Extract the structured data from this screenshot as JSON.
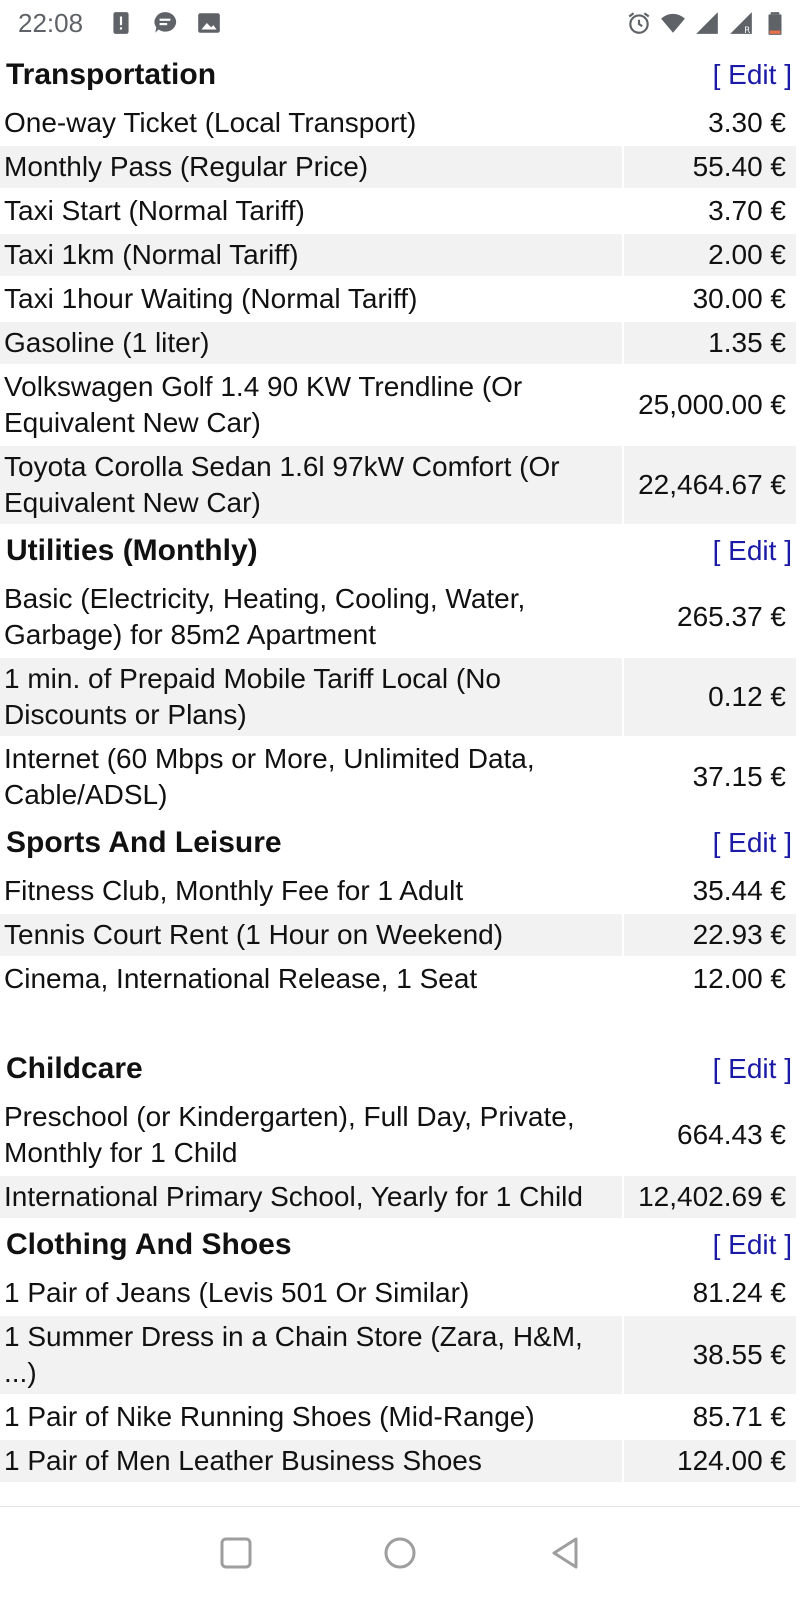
{
  "status_bar": {
    "time": "22:08",
    "icons_left": [
      "alert-icon",
      "message-icon",
      "image-icon"
    ],
    "icons_right": [
      "alarm-icon",
      "wifi-icon",
      "signal-icon",
      "signal-roaming-icon",
      "battery-low-icon"
    ]
  },
  "sections": [
    {
      "title": "Transportation",
      "edit": "[ Edit ]",
      "rows": [
        {
          "label": "One-way Ticket (Local Transport)",
          "price": "3.30 €"
        },
        {
          "label": "Monthly Pass (Regular Price)",
          "price": "55.40 €"
        },
        {
          "label": "Taxi Start (Normal Tariff)",
          "price": "3.70 €"
        },
        {
          "label": "Taxi 1km (Normal Tariff)",
          "price": "2.00 €"
        },
        {
          "label": "Taxi 1hour Waiting (Normal Tariff)",
          "price": "30.00 €"
        },
        {
          "label": "Gasoline (1 liter)",
          "price": "1.35 €"
        },
        {
          "label": "Volkswagen Golf 1.4 90 KW Trendline (Or Equivalent New Car)",
          "price": "25,000.00 €"
        },
        {
          "label": "Toyota Corolla Sedan 1.6l 97kW Comfort (Or Equivalent New Car)",
          "price": "22,464.67 €"
        }
      ]
    },
    {
      "title": "Utilities (Monthly)",
      "edit": "[ Edit ]",
      "rows": [
        {
          "label": "Basic (Electricity, Heating, Cooling, Water, Garbage) for 85m2 Apartment",
          "price": "265.37 €"
        },
        {
          "label": "1 min. of Prepaid Mobile Tariff Local (No Discounts or Plans)",
          "price": "0.12 €"
        },
        {
          "label": "Internet (60 Mbps or More, Unlimited Data, Cable/ADSL)",
          "price": "37.15 €"
        }
      ]
    },
    {
      "title": "Sports And Leisure",
      "edit": "[ Edit ]",
      "rows": [
        {
          "label": "Fitness Club, Monthly Fee for 1 Adult",
          "price": "35.44 €"
        },
        {
          "label": "Tennis Court Rent (1 Hour on Weekend)",
          "price": "22.93 €"
        },
        {
          "label": "Cinema, International Release, 1 Seat",
          "price": "12.00 €"
        }
      ]
    },
    {
      "title": "Childcare",
      "edit": "[ Edit ]",
      "rows": [
        {
          "label": "Preschool (or Kindergarten), Full Day, Private, Monthly for 1 Child",
          "price": "664.43 €"
        },
        {
          "label": "International Primary School, Yearly for 1 Child",
          "price": "12,402.69 €"
        }
      ]
    },
    {
      "title": "Clothing And Shoes",
      "edit": "[ Edit ]",
      "rows": [
        {
          "label": "1 Pair of Jeans (Levis 501 Or Similar)",
          "price": "81.24 €"
        },
        {
          "label": "1 Summer Dress in a Chain Store (Zara, H&M, ...)",
          "price": "38.55 €"
        },
        {
          "label": "1 Pair of Nike Running Shoes (Mid-Range)",
          "price": "85.71 €"
        },
        {
          "label": "1 Pair of Men Leather Business Shoes",
          "price": "124.00 €"
        }
      ]
    }
  ],
  "nav_bar": {
    "buttons": [
      "recent-apps-icon",
      "home-icon",
      "back-icon"
    ]
  },
  "colors": {
    "edit_link": "#1a1aa6",
    "row_alt_bg": "#f2f2f2",
    "statusbar_text": "#5f6368"
  }
}
